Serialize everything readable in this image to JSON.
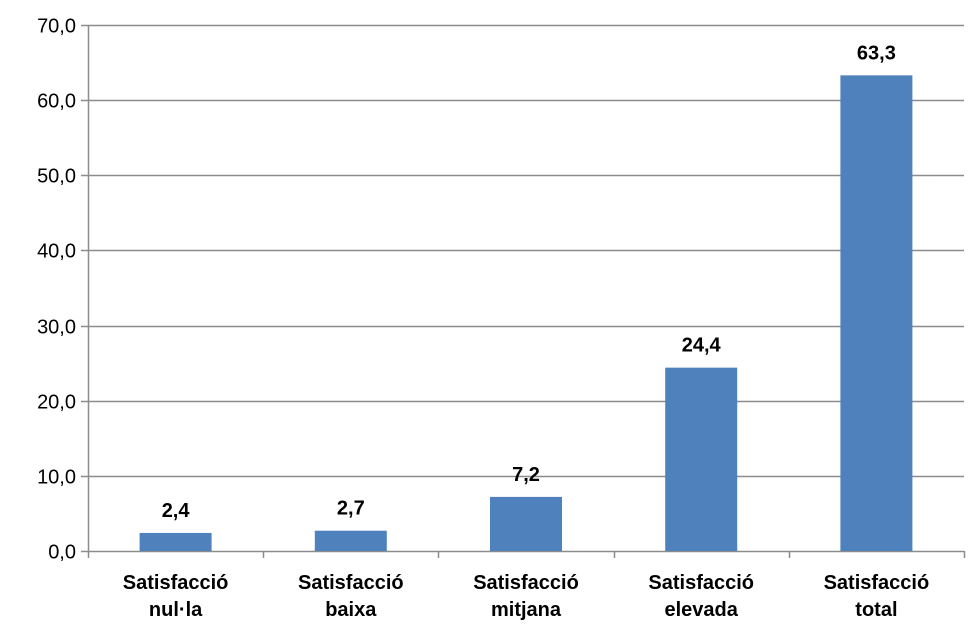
{
  "chart_data": {
    "type": "bar",
    "categories": [
      [
        "Satisfacció",
        "nul·la"
      ],
      [
        "Satisfacció",
        "baixa"
      ],
      [
        "Satisfacció",
        "mitjana"
      ],
      [
        "Satisfacció",
        "elevada"
      ],
      [
        "Satisfacció",
        "total"
      ]
    ],
    "values": [
      2.4,
      2.7,
      7.2,
      24.4,
      63.3
    ],
    "value_labels": [
      "2,4",
      "2,7",
      "7,2",
      "24,4",
      "63,3"
    ],
    "ylim": [
      0,
      70
    ],
    "yticks": [
      0,
      10,
      20,
      30,
      40,
      50,
      60,
      70
    ],
    "ytick_labels": [
      "0,0",
      "10,0",
      "20,0",
      "30,0",
      "40,0",
      "50,0",
      "60,0",
      "70,0"
    ],
    "grid": true,
    "legend": "none",
    "colors": {
      "bar": "#4F81BD",
      "grid": "#8C8C8C",
      "axis": "#8C8C8C"
    }
  }
}
